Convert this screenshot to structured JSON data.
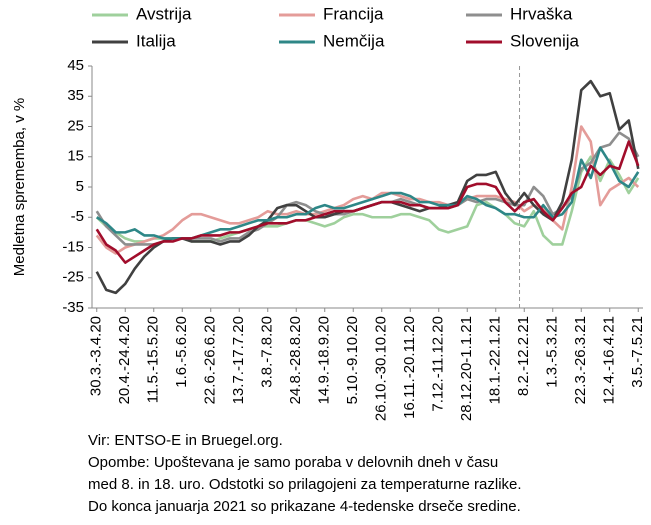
{
  "chart_data": {
    "type": "line",
    "y_axis_label": "Medletna sprememba, v %",
    "categories": [
      "30.3.-3.4.20",
      null,
      null,
      "20.4.-24.4.20",
      null,
      null,
      "11.5.-15.5.20",
      null,
      null,
      "1.6.-5.6.20",
      null,
      null,
      "22.6.-26.6.20",
      null,
      null,
      "13.7.-17.7.20",
      null,
      null,
      "3.8.-7.8.20",
      null,
      null,
      "24.8.-28.8.20",
      null,
      null,
      "14.9.-18.9.20",
      null,
      null,
      "5.10.-9.10.20",
      null,
      null,
      "26.10.-30.10.20",
      null,
      null,
      "16.11.-20.11.20",
      null,
      null,
      "7.12.-11.12.20",
      null,
      null,
      "28.12.20-1.1.21",
      null,
      null,
      "18.1.-22.1.21",
      null,
      null,
      "8.2.-12.2.21",
      null,
      null,
      "1.3.-5.3.21",
      null,
      null,
      "22.3.-26.3.21",
      null,
      null,
      "12.4.-16.4.21",
      null,
      null,
      "3.5.-7.5.21"
    ],
    "series": [
      {
        "name": "Avstrija",
        "color": "#9fd09c",
        "values": [
          -5,
          -8,
          -10,
          -12,
          -13,
          -13,
          -12,
          -12,
          -12,
          -12,
          -13,
          -13,
          -13,
          -12,
          -11,
          -10,
          -9,
          -8,
          -8,
          -8,
          -7,
          -6,
          -6,
          -7,
          -8,
          -7,
          -5,
          -4,
          -4,
          -5,
          -5,
          -5,
          -4,
          -4,
          -5,
          -6,
          -9,
          -10,
          -9,
          -8,
          -1,
          0,
          -2,
          -4,
          -7,
          -8,
          -3,
          -11,
          -14,
          -14,
          -3,
          10,
          15,
          7,
          14,
          9,
          3,
          8
        ]
      },
      {
        "name": "Francija",
        "color": "#e49c99",
        "values": [
          -11,
          -15,
          -17,
          -15,
          -14,
          -13,
          -12,
          -11,
          -9,
          -6,
          -4,
          -4,
          -5,
          -6,
          -7,
          -7,
          -6,
          -5,
          -3,
          -4,
          -4,
          -3,
          -4,
          -4,
          -3,
          -2,
          -1,
          1,
          2,
          1,
          3,
          3,
          2,
          1,
          1,
          0,
          0,
          -1,
          -1,
          1,
          2,
          2,
          2,
          1,
          0,
          -3,
          -1,
          -2,
          -6,
          -9,
          5,
          25,
          20,
          -1,
          4,
          6,
          8,
          5
        ]
      },
      {
        "name": "Hrvaška",
        "color": "#8e8e8e",
        "values": [
          -3,
          -8,
          -11,
          -14,
          -14,
          -14,
          -14,
          -13,
          -12,
          -12,
          -12,
          -12,
          -12,
          -13,
          -12,
          -12,
          -10,
          -9,
          -7,
          -5,
          -1,
          0,
          -1,
          -3,
          -4,
          -4,
          -4,
          -3,
          -2,
          -1,
          0,
          0,
          1,
          0,
          -1,
          -2,
          -2,
          -2,
          -1,
          1,
          0,
          1,
          1,
          0,
          -1,
          -1,
          5,
          2,
          -4,
          -2,
          2,
          11,
          13,
          18,
          19,
          23,
          21,
          15
        ]
      },
      {
        "name": "Italija",
        "color": "#404040",
        "values": [
          -23,
          -29,
          -30,
          -27,
          -22,
          -18,
          -15,
          -13,
          -12,
          -12,
          -13,
          -13,
          -13,
          -14,
          -13,
          -13,
          -11,
          -8,
          -6,
          -2,
          -1,
          -1,
          -3,
          -5,
          -5,
          -4,
          -3,
          -3,
          -2,
          -1,
          0,
          0,
          -1,
          -2,
          -3,
          -2,
          -2,
          -1,
          0,
          7,
          9,
          9,
          10,
          3,
          -1,
          3,
          -1,
          -4,
          -6,
          0,
          14,
          37,
          40,
          35,
          36,
          24,
          27,
          11
        ]
      },
      {
        "name": "Nemčija",
        "color": "#2e8787",
        "values": [
          -5,
          -7,
          -10,
          -10,
          -9,
          -11,
          -11,
          -12,
          -12,
          -12,
          -12,
          -11,
          -10,
          -9,
          -9,
          -8,
          -7,
          -6,
          -6,
          -5,
          -5,
          -4,
          -4,
          -2,
          -1,
          -2,
          -2,
          -1,
          0,
          1,
          2,
          3,
          3,
          2,
          0,
          0,
          -1,
          -1,
          -1,
          2,
          1,
          -1,
          -2,
          -4,
          -4,
          -5,
          -5,
          -1,
          -5,
          -4,
          0,
          14,
          8,
          18,
          13,
          7,
          5,
          10
        ]
      },
      {
        "name": "Slovenija",
        "color": "#a10d2b",
        "values": [
          -9,
          -14,
          -16,
          -20,
          -18,
          -16,
          -14,
          -13,
          -13,
          -12,
          -12,
          -11,
          -11,
          -11,
          -10,
          -10,
          -9,
          -8,
          -7,
          -7,
          -7,
          -6,
          -6,
          -5,
          -4,
          -3,
          -3,
          -3,
          -2,
          -1,
          0,
          0,
          0,
          -1,
          -1,
          -2,
          -2,
          -2,
          -1,
          5,
          6,
          6,
          5,
          0,
          -3,
          0,
          1,
          -3,
          -6,
          -2,
          3,
          5,
          12,
          9,
          12,
          11,
          20,
          12
        ]
      }
    ],
    "ylim": [
      -35,
      45
    ],
    "yticks": [
      -35,
      -25,
      -15,
      -5,
      5,
      15,
      25,
      35,
      45
    ],
    "notes": [
      "Vir: ENTSO-E in Bruegel.org.",
      "Opombe: Upoštevana je samo poraba v delovnih dneh v času",
      "med 8. in 18. uro. Odstotki so prilagojeni za temperaturne razlike.",
      "Do konca januarja 2021 so prikazane 4-tedenske drseče sredine."
    ]
  }
}
